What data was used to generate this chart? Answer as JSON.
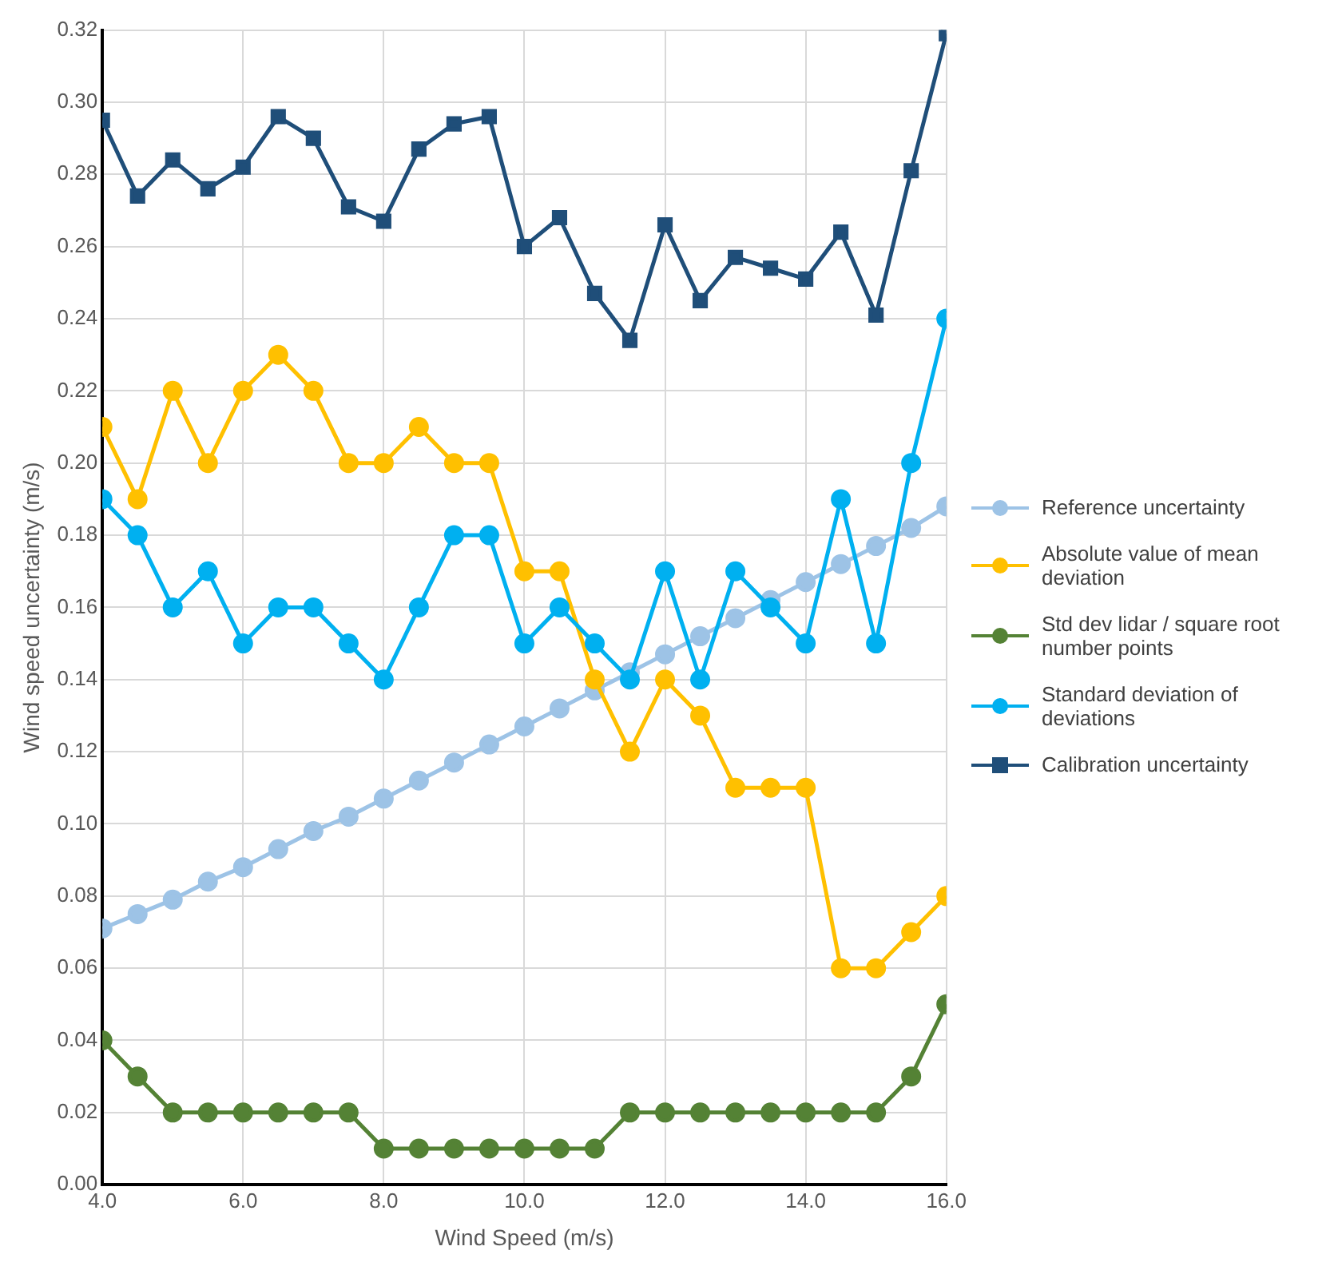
{
  "chart_data": {
    "type": "line",
    "xlabel": "Wind Speed (m/s)",
    "ylabel": "Wind speed uncertainty (m/s)",
    "x": [
      4,
      4.5,
      5,
      5.5,
      6,
      6.5,
      7,
      7.5,
      8,
      8.5,
      9,
      9.5,
      10,
      10.5,
      11,
      11.5,
      12,
      12.5,
      13,
      13.5,
      14,
      14.5,
      15,
      15.5,
      16
    ],
    "series": [
      {
        "name": "Reference uncertainty",
        "color": "#9dc3e6",
        "marker": "circle",
        "values": [
          0.071,
          0.075,
          0.079,
          0.084,
          0.088,
          0.093,
          0.098,
          0.102,
          0.107,
          0.112,
          0.117,
          0.122,
          0.127,
          0.132,
          0.137,
          0.142,
          0.147,
          0.152,
          0.157,
          0.162,
          0.167,
          0.172,
          0.177,
          0.182,
          0.188
        ]
      },
      {
        "name": "Absolute value of mean deviation",
        "color": "#ffc000",
        "marker": "circle",
        "values": [
          0.21,
          0.19,
          0.22,
          0.2,
          0.22,
          0.23,
          0.22,
          0.2,
          0.2,
          0.21,
          0.2,
          0.2,
          0.17,
          0.17,
          0.14,
          0.12,
          0.14,
          0.13,
          0.11,
          0.11,
          0.11,
          0.06,
          0.06,
          0.07,
          0.08
        ]
      },
      {
        "name": "Std dev lidar / square root number points",
        "color": "#548235",
        "marker": "circle",
        "values": [
          0.04,
          0.03,
          0.02,
          0.02,
          0.02,
          0.02,
          0.02,
          0.02,
          0.01,
          0.01,
          0.01,
          0.01,
          0.01,
          0.01,
          0.01,
          0.02,
          0.02,
          0.02,
          0.02,
          0.02,
          0.02,
          0.02,
          0.02,
          0.03,
          0.05
        ]
      },
      {
        "name": "Standard deviation of deviations",
        "color": "#00b0f0",
        "marker": "circle",
        "values": [
          0.19,
          0.18,
          0.16,
          0.17,
          0.15,
          0.16,
          0.16,
          0.15,
          0.14,
          0.16,
          0.18,
          0.18,
          0.15,
          0.16,
          0.15,
          0.14,
          0.17,
          0.14,
          0.17,
          0.16,
          0.15,
          0.19,
          0.15,
          0.2,
          0.24
        ]
      },
      {
        "name": "Calibration uncertainty",
        "color": "#1f4e79",
        "marker": "square",
        "values": [
          0.295,
          0.274,
          0.284,
          0.276,
          0.282,
          0.296,
          0.29,
          0.271,
          0.267,
          0.287,
          0.294,
          0.296,
          0.26,
          0.268,
          0.247,
          0.234,
          0.266,
          0.245,
          0.257,
          0.254,
          0.251,
          0.264,
          0.241,
          0.281,
          0.319
        ]
      }
    ],
    "xlim": [
      4,
      16
    ],
    "xticks": [
      {
        "value": 4,
        "label": "4.0"
      },
      {
        "value": 6,
        "label": "6.0"
      },
      {
        "value": 8,
        "label": "8.0"
      },
      {
        "value": 10,
        "label": "10.0"
      },
      {
        "value": 12,
        "label": "12.0"
      },
      {
        "value": 14,
        "label": "14.0"
      },
      {
        "value": 16,
        "label": "16.0"
      }
    ],
    "ylim": [
      0,
      0.32
    ],
    "yticks": [
      {
        "value": 0,
        "label": "0.00"
      },
      {
        "value": 0.02,
        "label": "0.02"
      },
      {
        "value": 0.04,
        "label": "0.04"
      },
      {
        "value": 0.06,
        "label": "0.06"
      },
      {
        "value": 0.08,
        "label": "0.08"
      },
      {
        "value": 0.1,
        "label": "0.10"
      },
      {
        "value": 0.12,
        "label": "0.12"
      },
      {
        "value": 0.14,
        "label": "0.14"
      },
      {
        "value": 0.16,
        "label": "0.16"
      },
      {
        "value": 0.18,
        "label": "0.18"
      },
      {
        "value": 0.2,
        "label": "0.20"
      },
      {
        "value": 0.22,
        "label": "0.22"
      },
      {
        "value": 0.24,
        "label": "0.24"
      },
      {
        "value": 0.26,
        "label": "0.26"
      },
      {
        "value": 0.28,
        "label": "0.28"
      },
      {
        "value": 0.3,
        "label": "0.30"
      },
      {
        "value": 0.32,
        "label": "0.32"
      }
    ],
    "grid": true,
    "legend": "right"
  }
}
